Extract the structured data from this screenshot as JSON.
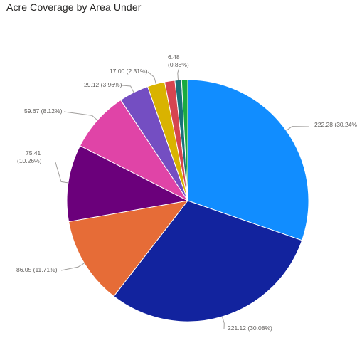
{
  "chart_data": {
    "type": "pie",
    "title": "Acre Coverage by Area Under",
    "slices": [
      {
        "value": 222.28,
        "label": "222.28 (30.24%)",
        "color": "#118DFF"
      },
      {
        "value": 221.12,
        "label": "221.12 (30.08%)",
        "color": "#12239E"
      },
      {
        "value": 86.05,
        "label": "86.05 (11.71%)",
        "color": "#E66C37"
      },
      {
        "value": 75.41,
        "label": "75.41 (10.26%)",
        "color": "#6B007B"
      },
      {
        "value": 59.67,
        "label": "59.67 (8.12%)",
        "color": "#E044A7"
      },
      {
        "value": 29.12,
        "label": "29.12 (3.96%)",
        "color": "#744EC2"
      },
      {
        "value": 17.0,
        "label": "17.00 (2.31%)",
        "color": "#D9B300"
      },
      {
        "value": 10.0,
        "label": "",
        "color": "#D64550"
      },
      {
        "value": 6.48,
        "label": "6.48 (0.88%)",
        "color": "#197278"
      },
      {
        "value": 6.0,
        "label": "",
        "color": "#1AAB40"
      }
    ]
  }
}
